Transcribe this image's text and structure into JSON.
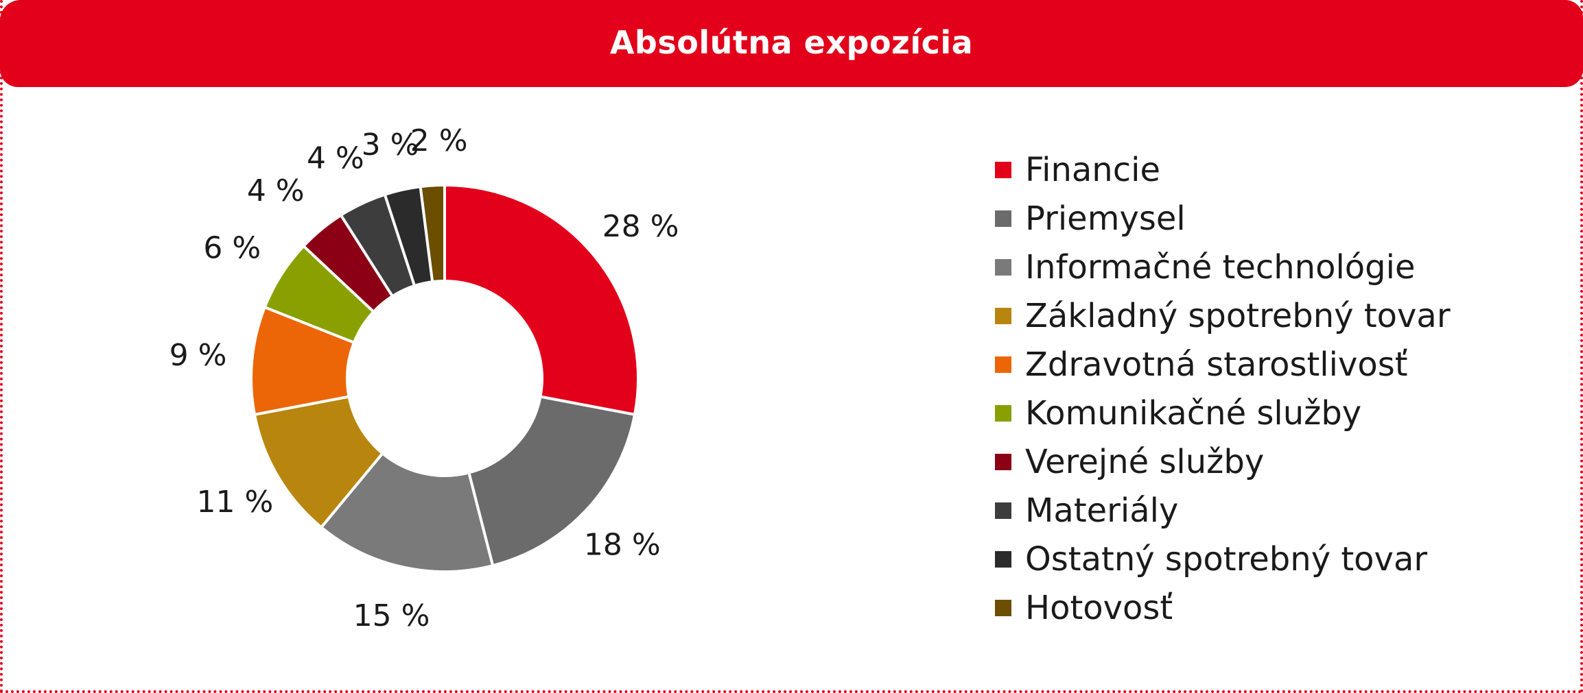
{
  "header": {
    "title": "Absolútna expozícia"
  },
  "colors": {
    "brand_red": "#e2001a"
  },
  "chart_data": {
    "type": "pie",
    "donut": true,
    "title": "Absolútna expozícia",
    "legend_position": "right",
    "categories": [
      "Financie",
      "Priemysel",
      "Informačné technológie",
      "Základný spotrebný tovar",
      "Zdravotná starostlivosť",
      "Komunikačné služby",
      "Verejné služby",
      "Materiály",
      "Ostatný spotrebný tovar",
      "Hotovosť"
    ],
    "values": [
      28,
      18,
      15,
      11,
      9,
      6,
      4,
      4,
      3,
      2
    ],
    "labels": [
      "28 %",
      "18 %",
      "15 %",
      "11 %",
      "9 %",
      "6 %",
      "4 %",
      "4 %",
      "3 %",
      "2 %"
    ],
    "colors": [
      "#e2001a",
      "#6b6b6b",
      "#7a7a7a",
      "#b8860f",
      "#ec6608",
      "#8aa000",
      "#8b0015",
      "#3d3d3d",
      "#2b2b2b",
      "#6b4e00"
    ]
  }
}
